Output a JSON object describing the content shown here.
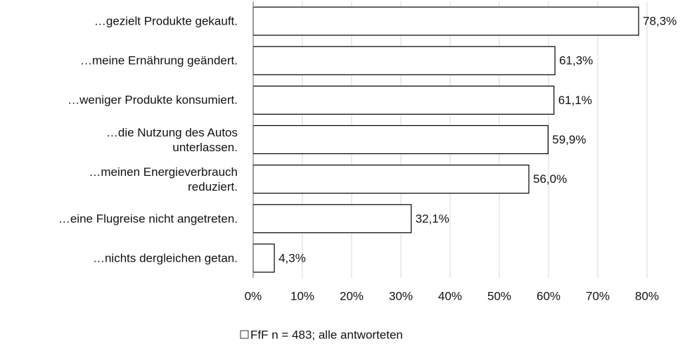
{
  "chart_data": {
    "type": "bar",
    "orientation": "horizontal",
    "categories": [
      "…gezielt Produkte gekauft.",
      "…meine Ernährung geändert.",
      "…weniger Produkte konsumiert.",
      "…die Nutzung des Autos\nunterlassen.",
      "…meinen Energieverbrauch\nreduziert.",
      "…eine Flugreise nicht angetreten.",
      "…nichts dergleichen getan."
    ],
    "series": [
      {
        "name": "FfF n = 483; alle antworteten",
        "color": "#ffffff",
        "values": [
          78.3,
          61.3,
          61.1,
          59.9,
          56.0,
          32.1,
          4.3
        ],
        "value_labels": [
          "78,3%",
          "61,3%",
          "61,1%",
          "59,9%",
          "56,0%",
          "32,1%",
          "4,3%"
        ]
      }
    ],
    "xlim": [
      0,
      80
    ],
    "xticks": [
      {
        "value": 0,
        "label": "0%"
      },
      {
        "value": 10,
        "label": "10%"
      },
      {
        "value": 20,
        "label": "20%"
      },
      {
        "value": 30,
        "label": "30%"
      },
      {
        "value": 40,
        "label": "40%"
      },
      {
        "value": 50,
        "label": "50%"
      },
      {
        "value": 60,
        "label": "60%"
      },
      {
        "value": 70,
        "label": "70%"
      },
      {
        "value": 80,
        "label": "80%"
      }
    ],
    "grid": true,
    "legend": "bottom"
  }
}
